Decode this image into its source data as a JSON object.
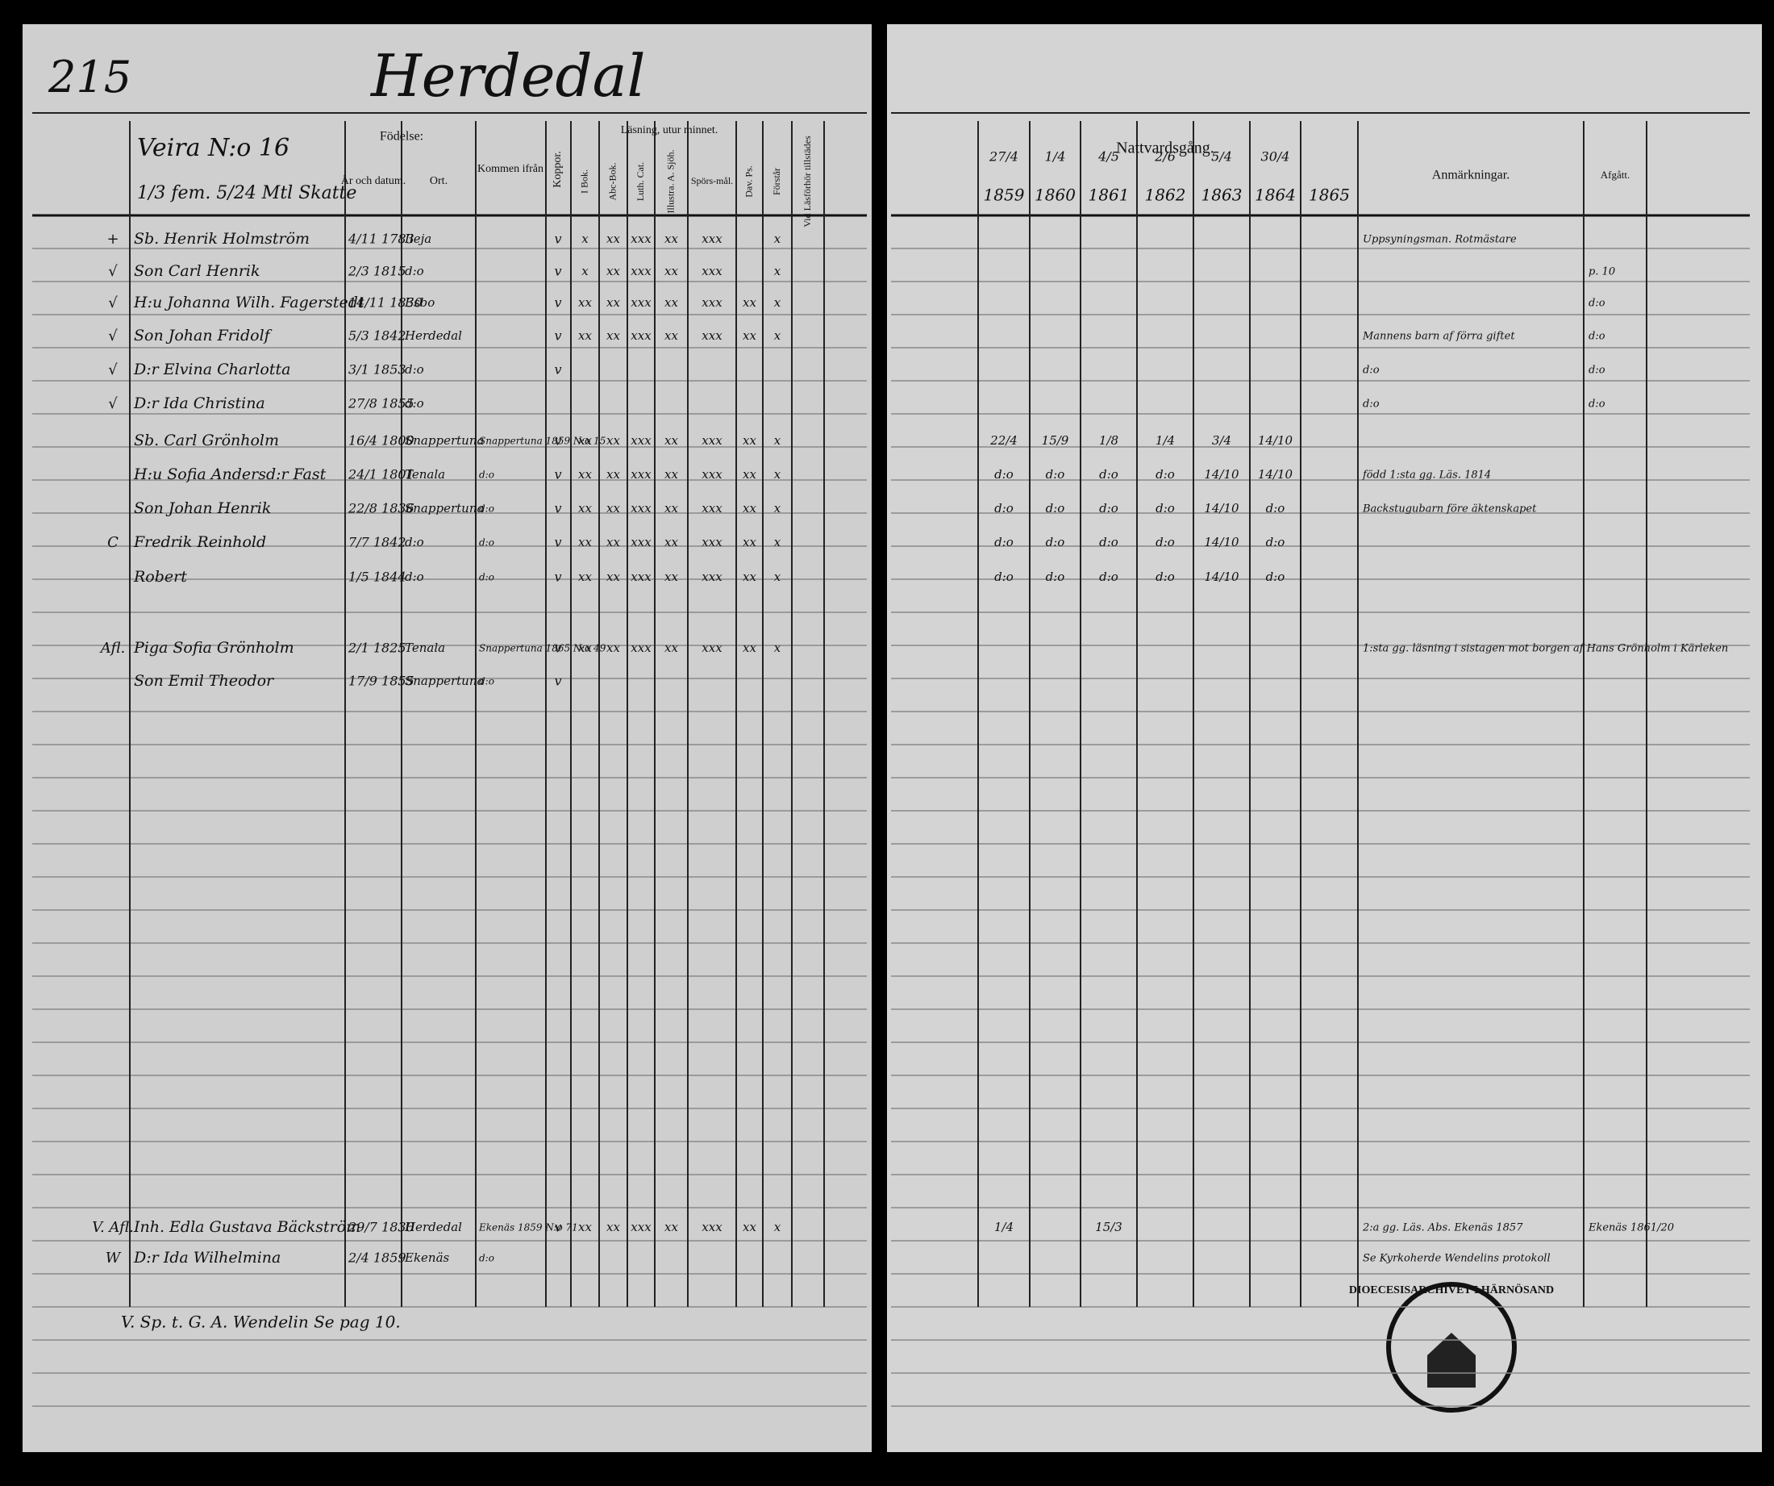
{
  "page_number": "215",
  "parish": "Herdedal",
  "left": {
    "farm": "Veira N:o 16",
    "farm_note": "1/3 fem. 5/24 Mtl Skatte",
    "headers": {
      "birth": "Födelse:",
      "year": "År och datum.",
      "place": "Ort.",
      "from": "Kommen ifrån",
      "vacc": "Koppor.",
      "reading": "Läsning, utur minnet.",
      "book": "I Bok.",
      "abc": "Abc-Bok.",
      "luth": "Luth. Cat.",
      "illustr": "Illustra. A. Sjöh.",
      "questions": "Spörs-mål.",
      "dav": "Dav. Ps.",
      "understands": "Förstår",
      "hearing": "Vid Läsförhör tillstädes"
    }
  },
  "right": {
    "communion": "Nattvardsgång.",
    "header_dates": [
      "27/4",
      "1/4",
      "4/5",
      "2/6",
      "5/4",
      "30/4",
      null
    ],
    "years": [
      "1859",
      "1860",
      "1861",
      "1862",
      "1863",
      "1864",
      "1865"
    ],
    "remarks": "Anmärkningar.",
    "departed": "Afgått."
  },
  "rows": [
    {
      "mark": "+",
      "name": "Sb. Henrik Holmström",
      "date": "4/11 1783",
      "place": "Ileja",
      "vacc": "v",
      "reading": [
        "x",
        "xx",
        "xxx",
        "xx",
        "xxx",
        null,
        "x"
      ],
      "remark": "Uppsyningsman. Rotmästare"
    },
    {
      "mark": "√",
      "name": "Son Carl Henrik",
      "date": "2/3 1815",
      "place": "d:o",
      "vacc": "v",
      "reading": [
        "x",
        "xx",
        "xxx",
        "xx",
        "xxx",
        null,
        "x"
      ],
      "departed": "p. 10"
    },
    {
      "mark": "√",
      "name": "H:u Johanna Wilh. Fagerstedt",
      "date": "14/11 1830",
      "place": "Esbo",
      "vacc": "v",
      "reading": [
        "xx",
        "xx",
        "xxx",
        "xx",
        "xxx",
        "xx",
        "x"
      ],
      "departed": "d:o"
    },
    {
      "mark": "√",
      "name": "Son Johan Fridolf",
      "date": "5/3 1842",
      "place": "Herdedal",
      "vacc": "v",
      "reading": [
        "xx",
        "xx",
        "xxx",
        "xx",
        "xxx",
        "xx",
        "x"
      ],
      "remark": "Mannens barn af förra giftet",
      "departed": "d:o"
    },
    {
      "mark": "√",
      "name": "D:r Elvina Charlotta",
      "date": "3/1 1853",
      "place": "d:o",
      "vacc": "v",
      "remark": "d:o",
      "departed": "d:o"
    },
    {
      "mark": "√",
      "name": "D:r Ida Christina",
      "date": "27/8 1855",
      "place": "d:o",
      "remark": "d:o",
      "departed": "d:o"
    },
    {
      "name": "Sb. Carl Grönholm",
      "date": "16/4 1800",
      "place": "Snappertuna",
      "from": "Snappertuna 1859 N:o 15",
      "vacc": "v",
      "reading": [
        "xx",
        "xx",
        "xxx",
        "xx",
        "xxx",
        "xx",
        "x"
      ],
      "communion": [
        "22/4",
        "15/9",
        "1/8",
        "1/4",
        "3/4",
        "14/10",
        null
      ]
    },
    {
      "name": "H:u Sofia Andersd:r Fast",
      "date": "24/1 1801",
      "place": "Tenala",
      "from": "d:o",
      "vacc": "v",
      "reading": [
        "xx",
        "xx",
        "xxx",
        "xx",
        "xxx",
        "xx",
        "x"
      ],
      "communion": [
        "d:o",
        "d:o",
        "d:o",
        "d:o",
        "14/10",
        "14/10",
        null
      ],
      "remark": "född 1:sta gg. Läs. 1814"
    },
    {
      "name": "Son Johan Henrik",
      "date": "22/8 1836",
      "place": "Snappertuna",
      "from": "d:o",
      "vacc": "v",
      "reading": [
        "xx",
        "xx",
        "xxx",
        "xx",
        "xxx",
        "xx",
        "x"
      ],
      "communion": [
        "d:o",
        "d:o",
        "d:o",
        "d:o",
        "14/10",
        "d:o",
        null
      ],
      "remark": "Backstugubarn före äktenskapet"
    },
    {
      "mark": "C",
      "name": "Fredrik Reinhold",
      "date": "7/7 1842",
      "place": "d:o",
      "from": "d:o",
      "vacc": "v",
      "reading": [
        "xx",
        "xx",
        "xxx",
        "xx",
        "xxx",
        "xx",
        "x"
      ],
      "communion": [
        "d:o",
        "d:o",
        "d:o",
        "d:o",
        "14/10",
        "d:o",
        null
      ]
    },
    {
      "name": "Robert",
      "date": "1/5 1844",
      "place": "d:o",
      "from": "d:o",
      "vacc": "v",
      "reading": [
        "xx",
        "xx",
        "xxx",
        "xx",
        "xxx",
        "xx",
        "x"
      ],
      "communion": [
        "d:o",
        "d:o",
        "d:o",
        "d:o",
        "14/10",
        "d:o",
        null
      ]
    },
    {
      "mark": "Afl.",
      "name": "Piga Sofia Grönholm",
      "date": "2/1 1825",
      "place": "Tenala",
      "from": "Snappertuna 1865 N:o 49",
      "vacc": "v",
      "reading": [
        "xx",
        "xx",
        "xxx",
        "xx",
        "xxx",
        "xx",
        "x"
      ],
      "remark": "1:sta gg. läsning i sistagen mot borgen af Hans Grönholm i Kärleken"
    },
    {
      "name": "Son Emil Theodor",
      "date": "17/9 1855",
      "place": "Snappertuna",
      "from": "d:o",
      "vacc": "v"
    },
    {
      "mark": "V. Afl.",
      "name": "Inh. Edla Gustava Bäckström",
      "date": "29/7 1830",
      "place": "Herdedal",
      "from": "Ekenäs 1859 N:o 71",
      "vacc": "v",
      "reading": [
        "xx",
        "xx",
        "xxx",
        "xx",
        "xxx",
        "xx",
        "x"
      ],
      "communion": [
        "1/4",
        null,
        "15/3",
        null,
        null,
        null,
        null
      ],
      "remark": "2:a gg. Läs. Abs. Ekenäs 1857",
      "departed": "Ekenäs 1861/20"
    },
    {
      "mark": "W",
      "name": "D:r Ida Wilhelmina",
      "date": "2/4 1859",
      "place": "Ekenäs",
      "from": "d:o",
      "remark": "Se Kyrkoherde Wendelins protokoll"
    }
  ],
  "footer": "V. Sp. t. G. A. Wendelin Se pag 10.",
  "stamp": "DIOECESISARCHIVET I HÄRNÖSAND"
}
